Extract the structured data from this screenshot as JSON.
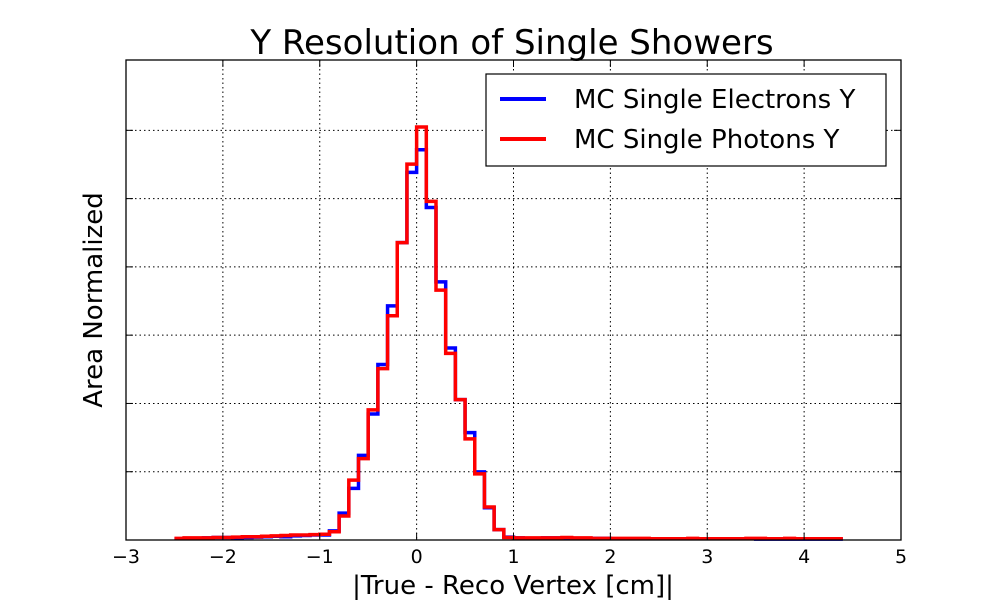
{
  "chart_data": {
    "type": "line",
    "title": "Y Resolution of Single Showers",
    "xlabel": "|True - Reco Vertex [cm]|",
    "ylabel": "Area Normalized",
    "xlim": [
      -3,
      5
    ],
    "ylim": [
      0,
      1.0
    ],
    "x_ticks": [
      -3,
      -2,
      -1,
      0,
      1,
      2,
      3,
      4,
      5
    ],
    "x_tick_labels": [
      "−3",
      "−2",
      "−1",
      "0",
      "1",
      "2",
      "3",
      "4",
      "5"
    ],
    "y_tick_count": 6,
    "grid": true,
    "legend_position": "top-right",
    "bin_width": 0.1,
    "bin_start": -2.5,
    "series": [
      {
        "name": "MC Single Electrons Y",
        "color": "#0000ff",
        "values": [
          0.003,
          0.004,
          0.004,
          0.005,
          0.006,
          0.006,
          0.005,
          0.006,
          0.007,
          0.008,
          0.009,
          0.008,
          0.01,
          0.011,
          0.012,
          0.012,
          0.022,
          0.065,
          0.125,
          0.205,
          0.305,
          0.425,
          0.567,
          0.72,
          0.89,
          0.945,
          0.805,
          0.625,
          0.465,
          0.34,
          0.26,
          0.165,
          0.078,
          0.025,
          0.007,
          0.005,
          0.004,
          0.004,
          0.005,
          0.005,
          0.005,
          0.004,
          0.004,
          0.004,
          0.004,
          0.003,
          0.003,
          0.003,
          0.003,
          0.003,
          0.003,
          0.003,
          0.003,
          0.003,
          0.003,
          0.003,
          0.003,
          0.003,
          0.003,
          0.003,
          0.002,
          0.002,
          0.002,
          0.002,
          0.002,
          0.002,
          0.002,
          0.002,
          0.002
        ]
      },
      {
        "name": "MC Single Photons Y",
        "color": "#ff0000",
        "values": [
          0.004,
          0.005,
          0.005,
          0.005,
          0.006,
          0.006,
          0.007,
          0.008,
          0.008,
          0.009,
          0.01,
          0.011,
          0.012,
          0.012,
          0.013,
          0.014,
          0.02,
          0.058,
          0.145,
          0.197,
          0.315,
          0.415,
          0.543,
          0.72,
          0.91,
          1.0,
          0.82,
          0.605,
          0.452,
          0.34,
          0.245,
          0.16,
          0.08,
          0.025,
          0.006,
          0.005,
          0.005,
          0.005,
          0.005,
          0.005,
          0.006,
          0.005,
          0.005,
          0.004,
          0.004,
          0.004,
          0.004,
          0.004,
          0.004,
          0.003,
          0.003,
          0.003,
          0.003,
          0.004,
          0.003,
          0.003,
          0.003,
          0.003,
          0.003,
          0.004,
          0.004,
          0.003,
          0.003,
          0.004,
          0.003,
          0.003,
          0.003,
          0.003,
          0.003
        ]
      }
    ]
  }
}
